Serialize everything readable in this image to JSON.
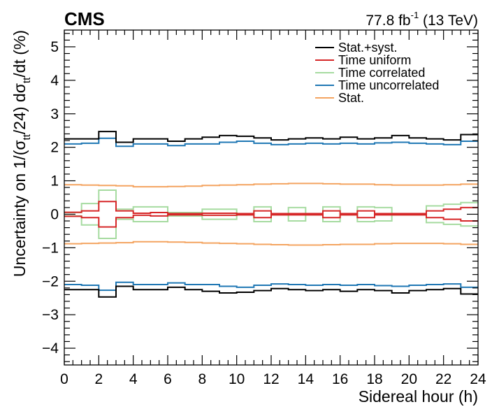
{
  "chart_data": {
    "type": "line",
    "experiment_label": "CMS",
    "lumi_label": {
      "value": "77.8 fb",
      "exponent": "-1",
      "energy": " (13 TeV)"
    },
    "xlabel": "Sidereal hour (h)",
    "ylabel": {
      "prefix": "Uncertainty on 1/(σ",
      "sub1": "tt",
      "mid": "/24) dσ",
      "sub2": "tt",
      "suffix": "/dt (%)"
    },
    "xlim": [
      0,
      24
    ],
    "ylim": [
      -4.5,
      5.5
    ],
    "x_major_ticks": [
      0,
      2,
      4,
      6,
      8,
      10,
      12,
      14,
      16,
      18,
      20,
      22,
      24
    ],
    "y_major_ticks": [
      -4,
      -3,
      -2,
      -1,
      0,
      1,
      2,
      3,
      4,
      5
    ],
    "x_tick_labels": [
      "0",
      "2",
      "4",
      "6",
      "8",
      "10",
      "12",
      "14",
      "16",
      "18",
      "20",
      "22",
      "24"
    ],
    "y_tick_labels": [
      "−4",
      "−3",
      "−2",
      "−1",
      "0",
      "1",
      "2",
      "3",
      "4",
      "5"
    ],
    "grid": false,
    "legend_position": "top-right",
    "bin_edges": [
      0,
      1,
      2,
      3,
      4,
      5,
      6,
      7,
      8,
      9,
      10,
      11,
      12,
      13,
      14,
      15,
      16,
      17,
      18,
      19,
      20,
      21,
      22,
      23,
      24
    ],
    "series": [
      {
        "name": "Stat.+syst.",
        "color": "#000000",
        "symmetric": true,
        "values": [
          2.25,
          2.25,
          2.47,
          2.15,
          2.25,
          2.25,
          2.18,
          2.25,
          2.3,
          2.35,
          2.33,
          2.28,
          2.22,
          2.25,
          2.28,
          2.25,
          2.3,
          2.25,
          2.28,
          2.35,
          2.28,
          2.25,
          2.22,
          2.38
        ]
      },
      {
        "name": "Time uniform",
        "color": "#d62728",
        "symmetric": true,
        "values": [
          0.06,
          0.1,
          0.38,
          0.1,
          0.03,
          0.05,
          0.02,
          0.02,
          0.03,
          0.03,
          0.02,
          0.1,
          0.02,
          0.02,
          0.02,
          0.1,
          0.02,
          0.1,
          0.02,
          0.02,
          0.02,
          0.1,
          0.15,
          0.2
        ]
      },
      {
        "name": "Time correlated",
        "color": "#a6dba0",
        "symmetric": true,
        "values": [
          0.05,
          0.32,
          0.72,
          0.15,
          0.22,
          0.22,
          0.05,
          0.05,
          0.15,
          0.15,
          0.02,
          0.22,
          0.02,
          0.2,
          0.02,
          0.22,
          0.02,
          0.22,
          0.2,
          0.02,
          0.02,
          0.25,
          0.3,
          0.35
        ]
      },
      {
        "name": "Time uncorrelated",
        "color": "#1f77b4",
        "symmetric": true,
        "values": [
          2.1,
          2.12,
          2.27,
          2.03,
          2.1,
          2.1,
          2.05,
          2.1,
          2.1,
          2.15,
          2.18,
          2.12,
          2.08,
          2.1,
          2.12,
          2.1,
          2.12,
          2.1,
          2.13,
          2.15,
          2.12,
          2.1,
          2.08,
          2.18
        ]
      },
      {
        "name": "Stat.",
        "color": "#f4a460",
        "symmetric": true,
        "values": [
          0.88,
          0.87,
          0.86,
          0.85,
          0.82,
          0.82,
          0.83,
          0.84,
          0.86,
          0.87,
          0.88,
          0.9,
          0.91,
          0.92,
          0.92,
          0.91,
          0.9,
          0.9,
          0.88,
          0.87,
          0.87,
          0.87,
          0.88,
          0.9
        ]
      }
    ]
  }
}
